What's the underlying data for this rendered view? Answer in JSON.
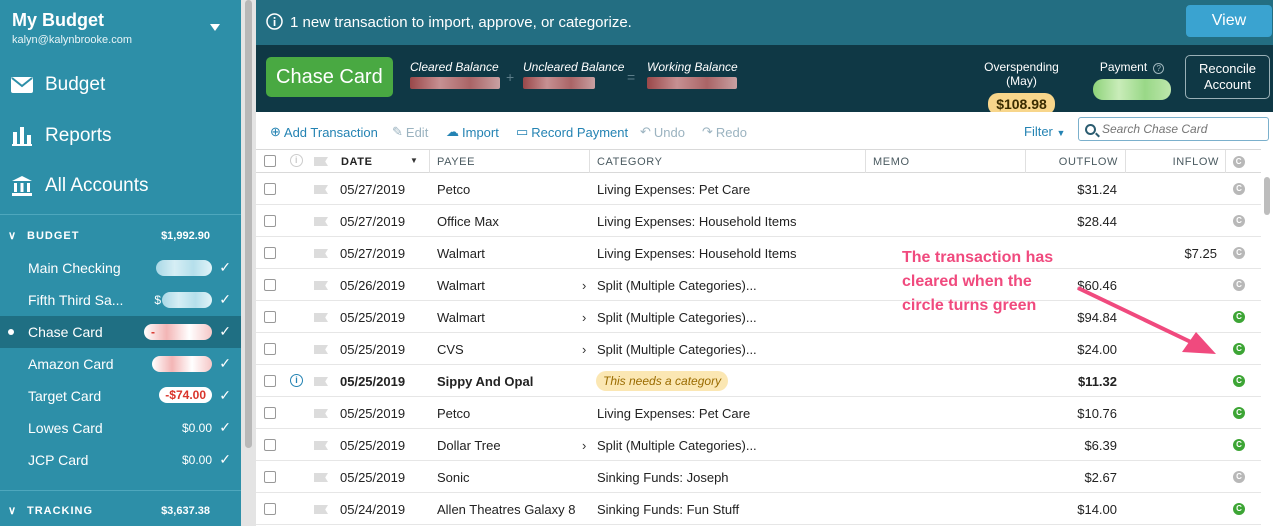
{
  "sidebar": {
    "budget_name": "My Budget",
    "email": "kalyn@kalynbrooke.com",
    "nav": [
      {
        "label": "Budget",
        "icon": "envelope-icon"
      },
      {
        "label": "Reports",
        "icon": "bar-chart-icon"
      },
      {
        "label": "All Accounts",
        "icon": "bank-icon"
      }
    ],
    "budget_group": {
      "label": "BUDGET",
      "amount": "$1,992.90"
    },
    "accounts": [
      {
        "name": "Main Checking",
        "amount": ""
      },
      {
        "name": "Fifth Third Sa...",
        "amount": "$"
      },
      {
        "name": "Chase Card",
        "amount": "-"
      },
      {
        "name": "Amazon Card",
        "amount": ""
      },
      {
        "name": "Target Card",
        "amount": "-$74.00"
      },
      {
        "name": "Lowes Card",
        "amount": "$0.00"
      },
      {
        "name": "JCP Card",
        "amount": "$0.00"
      }
    ],
    "tracking_group": {
      "label": "TRACKING",
      "amount": "$3,637.38"
    }
  },
  "banner": {
    "message": "1 new transaction to import, approve, or categorize.",
    "view_label": "View"
  },
  "account_header": {
    "name": "Chase Card",
    "cleared_label": "Cleared Balance",
    "uncleared_label": "Uncleared Balance",
    "working_label": "Working Balance",
    "plus": "+",
    "equals": "=",
    "overspending_label": "Overspending (May)",
    "overspending_value": "$108.98",
    "payment_label": "Payment",
    "reconcile_label": "Reconcile Account"
  },
  "toolbar": {
    "add": "Add Transaction",
    "edit": "Edit",
    "import": "Import",
    "record_payment": "Record Payment",
    "undo": "Undo",
    "redo": "Redo",
    "filter": "Filter",
    "search_placeholder": "Search Chase Card"
  },
  "columns": {
    "date": "DATE",
    "payee": "PAYEE",
    "category": "CATEGORY",
    "memo": "MEMO",
    "outflow": "OUTFLOW",
    "inflow": "INFLOW"
  },
  "transactions": [
    {
      "date": "05/27/2019",
      "payee": "Petco",
      "category": "Living Expenses: Pet Care",
      "outflow": "$31.24",
      "inflow": "",
      "cleared": false,
      "split": false
    },
    {
      "date": "05/27/2019",
      "payee": "Office Max",
      "category": "Living Expenses: Household Items",
      "outflow": "$28.44",
      "inflow": "",
      "cleared": false,
      "split": false
    },
    {
      "date": "05/27/2019",
      "payee": "Walmart",
      "category": "Living Expenses: Household Items",
      "outflow": "",
      "inflow": "$7.25",
      "cleared": false,
      "split": false
    },
    {
      "date": "05/26/2019",
      "payee": "Walmart",
      "category": "Split (Multiple Categories)...",
      "outflow": "$60.46",
      "inflow": "",
      "cleared": false,
      "split": true
    },
    {
      "date": "05/25/2019",
      "payee": "Walmart",
      "category": "Split (Multiple Categories)...",
      "outflow": "$94.84",
      "inflow": "",
      "cleared": true,
      "split": true
    },
    {
      "date": "05/25/2019",
      "payee": "CVS",
      "category": "Split (Multiple Categories)...",
      "outflow": "$24.00",
      "inflow": "",
      "cleared": true,
      "split": true
    },
    {
      "date": "05/25/2019",
      "payee": "Sippy And Opal",
      "category": "This needs a category",
      "outflow": "$11.32",
      "inflow": "",
      "cleared": true,
      "split": false,
      "needs_category": true
    },
    {
      "date": "05/25/2019",
      "payee": "Petco",
      "category": "Living Expenses: Pet Care",
      "outflow": "$10.76",
      "inflow": "",
      "cleared": true,
      "split": false
    },
    {
      "date": "05/25/2019",
      "payee": "Dollar Tree",
      "category": "Split (Multiple Categories)...",
      "outflow": "$6.39",
      "inflow": "",
      "cleared": true,
      "split": true
    },
    {
      "date": "05/25/2019",
      "payee": "Sonic",
      "category": "Sinking Funds: Joseph",
      "outflow": "$2.67",
      "inflow": "",
      "cleared": false,
      "split": false
    },
    {
      "date": "05/24/2019",
      "payee": "Allen Theatres Galaxy 8",
      "category": "Sinking Funds: Fun Stuff",
      "outflow": "$14.00",
      "inflow": "",
      "cleared": true,
      "split": false
    }
  ],
  "annotation": {
    "line1": "The transaction has",
    "line2": "cleared when the",
    "line3": "circle turns green"
  },
  "colors": {
    "sidebar": "#2d8fa8",
    "header_dark": "#0f3845",
    "account_green": "#49a942",
    "cleared_green": "#3da535",
    "annotation_pink": "#f04a7e",
    "link_blue": "#2483b3"
  }
}
